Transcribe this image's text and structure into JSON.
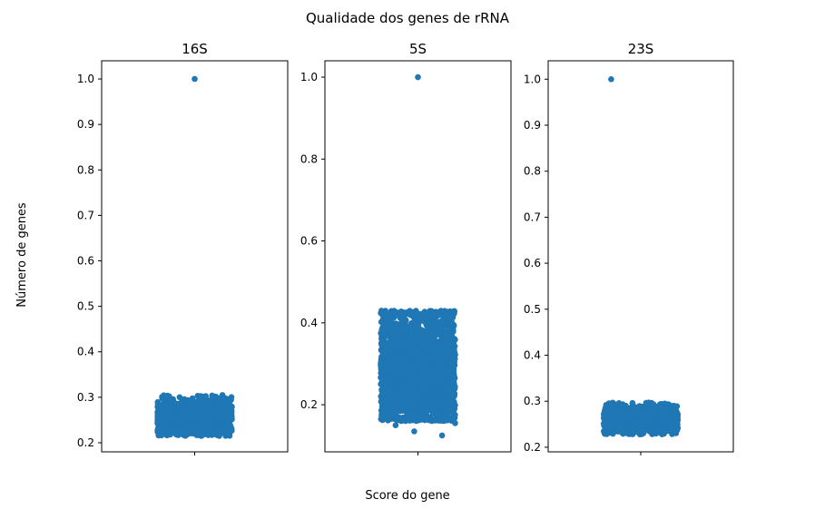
{
  "figure": {
    "title": "Qualidade dos genes de rRNA",
    "xlabel": "Score do gene",
    "ylabel": "Número de genes"
  },
  "chart_data": {
    "type": "scatter",
    "subtype": "strip",
    "color": "#1f77b4",
    "grid": false,
    "legend": false,
    "panels": [
      {
        "title": "16S",
        "ylim": [
          0.18,
          1.04
        ],
        "yticks": [
          0.2,
          0.3,
          0.4,
          0.5,
          0.6,
          0.7,
          0.8,
          0.9,
          1.0
        ],
        "ytick_labels": [
          "0.2",
          "0.3",
          "0.4",
          "0.5",
          "0.6",
          "0.7",
          "0.8",
          "0.9",
          "1.0"
        ],
        "cluster": {
          "min": 0.215,
          "max": 0.305,
          "center": 0.255,
          "spread": 0.02,
          "n": 1500
        },
        "outliers": [
          {
            "x": 0.0,
            "y": 1.0
          }
        ]
      },
      {
        "title": "5S",
        "ylim": [
          0.085,
          1.04
        ],
        "yticks": [
          0.2,
          0.4,
          0.6,
          0.8,
          1.0
        ],
        "ytick_labels": [
          "0.2",
          "0.4",
          "0.6",
          "0.8",
          "1.0"
        ],
        "cluster": {
          "min": 0.16,
          "max": 0.43,
          "center": 0.29,
          "spread": 0.07,
          "n": 2500
        },
        "outliers": [
          {
            "x": 0.0,
            "y": 1.0
          },
          {
            "x": -0.12,
            "y": 0.15
          },
          {
            "x": -0.02,
            "y": 0.135
          },
          {
            "x": 0.13,
            "y": 0.125
          },
          {
            "x": 0.2,
            "y": 0.155
          }
        ]
      },
      {
        "title": "23S",
        "ylim": [
          0.19,
          1.04
        ],
        "yticks": [
          0.2,
          0.3,
          0.4,
          0.5,
          0.6,
          0.7,
          0.8,
          0.9,
          1.0
        ],
        "ytick_labels": [
          "0.2",
          "0.3",
          "0.4",
          "0.5",
          "0.6",
          "0.7",
          "0.8",
          "0.9",
          "1.0"
        ],
        "cluster": {
          "min": 0.228,
          "max": 0.297,
          "center": 0.26,
          "spread": 0.015,
          "n": 1200
        },
        "outliers": [
          {
            "x": -0.16,
            "y": 1.0
          }
        ]
      }
    ]
  }
}
